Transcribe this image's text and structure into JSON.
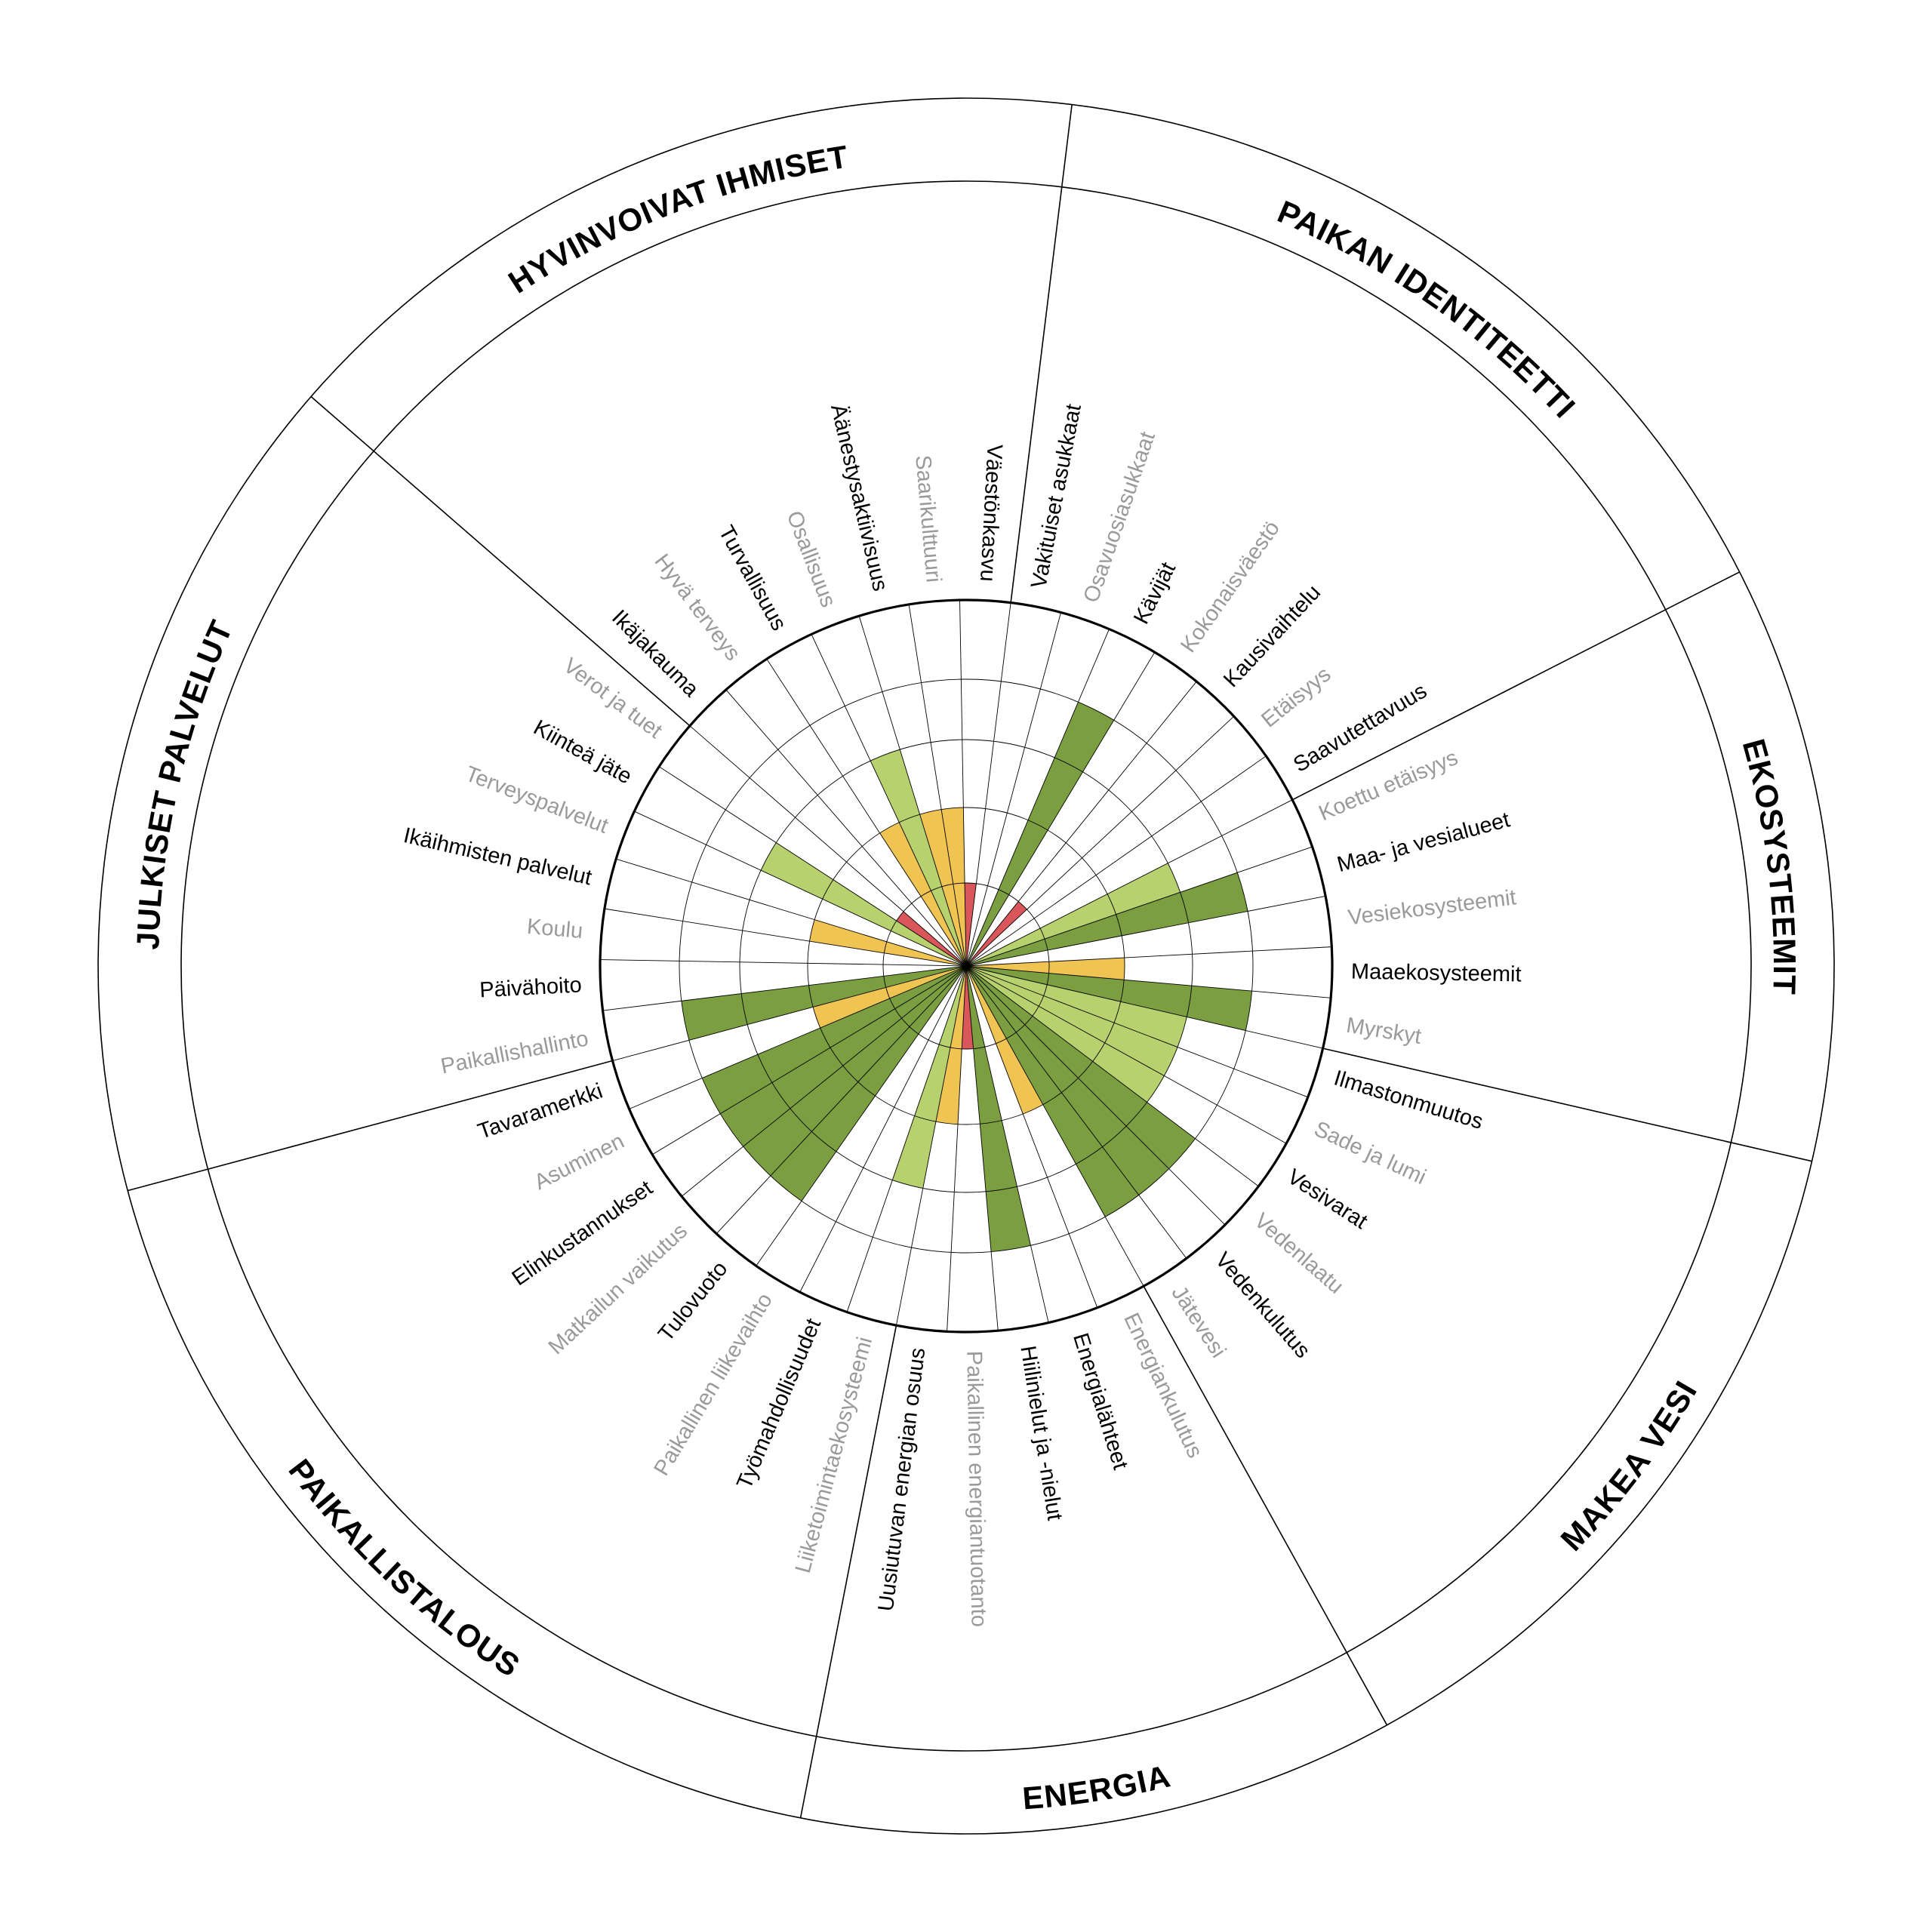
{
  "colors": {
    "1": "#d9565a",
    "2": "#efc452",
    "3": "#b8d16f",
    "4": "#7b9e40",
    "active_label": "#000000",
    "inactive_label": "#9a9a9a"
  },
  "chart_data": {
    "type": "polar-bar",
    "title": "",
    "scale_max": 5,
    "sectors": [
      {
        "name": "PAIKAN IDENTITEETTI",
        "items": [
          {
            "label": "Vakituiset asukkaat",
            "value": 0,
            "active": true
          },
          {
            "label": "Osavuosiasukkaat",
            "value": 0,
            "active": false
          },
          {
            "label": "Kävijät",
            "value": 4,
            "active": true
          },
          {
            "label": "Kokonaisväestö",
            "value": 0,
            "active": false
          },
          {
            "label": "Kausivaihtelu",
            "value": 1,
            "active": true
          },
          {
            "label": "Etäisyys",
            "value": 0,
            "active": false
          },
          {
            "label": "Saavutettavuus",
            "value": 0,
            "active": true
          }
        ]
      },
      {
        "name": "EKOSYSTEEMIT",
        "items": [
          {
            "label": "Koettu etäisyys",
            "value": 3,
            "active": false
          },
          {
            "label": "Maa- ja vesialueet",
            "value": 4,
            "active": true
          },
          {
            "label": "Vesiekosysteemit",
            "value": 0,
            "active": false
          },
          {
            "label": "Maaekosysteemit",
            "value": 2,
            "active": true
          },
          {
            "label": "Myrskyt",
            "value": 4,
            "active": false
          }
        ]
      },
      {
        "name": "MAKEA VESI",
        "items": [
          {
            "label": "Ilmastonmuutos",
            "value": 3,
            "active": true
          },
          {
            "label": "Sade ja lumi",
            "value": 3,
            "active": false
          },
          {
            "label": "Vesivarat",
            "value": 3,
            "active": true
          },
          {
            "label": "Vedenlaatu",
            "value": 4,
            "active": false
          },
          {
            "label": "Vedenkulutus",
            "value": 4,
            "active": true
          },
          {
            "label": "Jätevesi",
            "value": 4,
            "active": false
          }
        ]
      },
      {
        "name": "ENERGIA",
        "items": [
          {
            "label": "Energiankulutus",
            "value": 2,
            "active": false
          },
          {
            "label": "Energialähteet",
            "value": 0,
            "active": true
          },
          {
            "label": "Hiilinielut ja -nielut",
            "value": 4,
            "active": true
          },
          {
            "label": "Paikallinen energiantuotanto",
            "value": 1,
            "active": false
          },
          {
            "label": "Uusiutuvan energian osuus",
            "value": 2,
            "active": true
          }
        ]
      },
      {
        "name": "PAIKALLISTALOUS",
        "items": [
          {
            "label": "Liiketoimintaekosysteemi",
            "value": 3,
            "active": false
          },
          {
            "label": "Työmahdollisuudet",
            "value": 0,
            "active": true
          },
          {
            "label": "Paikallinen liikevaihto",
            "value": 0,
            "active": false
          },
          {
            "label": "Tulovuoto",
            "value": 4,
            "active": true
          },
          {
            "label": "Matkailun vaikutus",
            "value": 4,
            "active": false
          },
          {
            "label": "Elinkustannukset",
            "value": 4,
            "active": true
          },
          {
            "label": "Asuminen",
            "value": 4,
            "active": false
          },
          {
            "label": "Tavaramerkki",
            "value": 2,
            "active": true
          }
        ]
      },
      {
        "name": "JULKISET PALVELUT",
        "items": [
          {
            "label": "Paikallishallinto",
            "value": 4,
            "active": false
          },
          {
            "label": "Päivähoito",
            "value": 0,
            "active": true
          },
          {
            "label": "Koulu",
            "value": 0,
            "active": false
          },
          {
            "label": "Ikäihmisten palvelut",
            "value": 2,
            "active": true
          },
          {
            "label": "Terveyspalvelut",
            "value": 0,
            "active": false
          },
          {
            "label": "Kiinteä jäte",
            "value": 3,
            "active": true
          },
          {
            "label": "Verot ja tuet",
            "value": 1,
            "active": false
          }
        ]
      },
      {
        "name": "HYVINVOIVAT IHMISET",
        "items": [
          {
            "label": "Ikäjakauma",
            "value": 0,
            "active": true
          },
          {
            "label": "Hyvä terveys",
            "value": 0,
            "active": false
          },
          {
            "label": "Turvallisuus",
            "value": 2,
            "active": true
          },
          {
            "label": "Osallisuus",
            "value": 3,
            "active": false
          },
          {
            "label": "Äänestysaktiivisuus",
            "value": 2,
            "active": true
          },
          {
            "label": "Saarikulttuuri",
            "value": 2,
            "active": false
          },
          {
            "label": "Väestönkasvu",
            "value": 1,
            "active": true
          }
        ]
      }
    ]
  }
}
